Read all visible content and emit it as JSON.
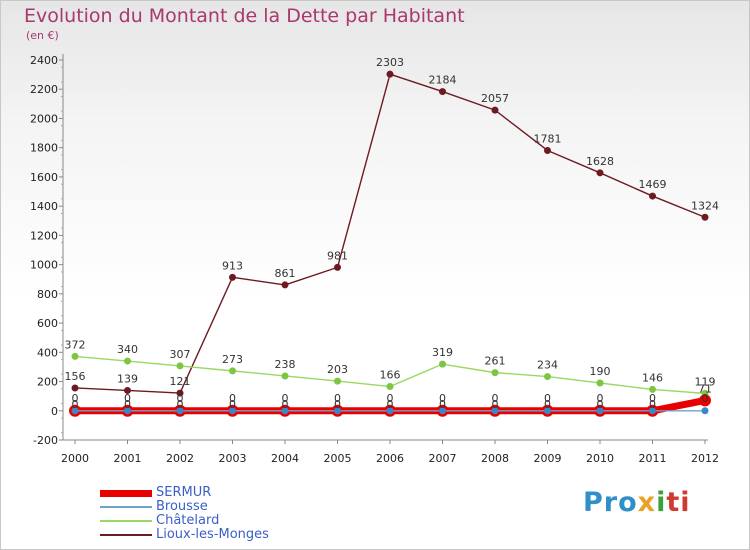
{
  "title": "Evolution du Montant de la Dette par Habitant",
  "subtitle": "(en €)",
  "logo": {
    "part1": "Pro",
    "part2": "x",
    "part3": "i",
    "part4": "ti"
  },
  "chart_data": {
    "type": "line",
    "title": "Evolution du Montant de la Dette par Habitant",
    "subtitle": "(en €)",
    "categories": [
      "2000",
      "2001",
      "2002",
      "2003",
      "2004",
      "2005",
      "2006",
      "2007",
      "2008",
      "2009",
      "2010",
      "2011",
      "2012"
    ],
    "ylim": [
      -200,
      2400
    ],
    "yticks": [
      -200,
      0,
      200,
      400,
      600,
      800,
      1000,
      1200,
      1400,
      1600,
      1800,
      2000,
      2200,
      2400
    ],
    "grid": false,
    "legend_position": "bottom-left",
    "series": [
      {
        "name": "SERMUR",
        "color": "#e80000",
        "values": [
          0,
          0,
          0,
          0,
          0,
          0,
          0,
          0,
          0,
          0,
          0,
          0,
          71
        ]
      },
      {
        "name": "Brousse",
        "color": "#6fa3c8",
        "values": [
          0,
          0,
          0,
          0,
          0,
          0,
          0,
          0,
          0,
          0,
          0,
          0,
          0
        ]
      },
      {
        "name": "Châtelard",
        "color": "#99d962",
        "values": [
          372,
          340,
          307,
          273,
          238,
          203,
          166,
          319,
          261,
          234,
          190,
          146,
          119
        ]
      },
      {
        "name": "Lioux-les-Monges",
        "color": "#6e1a22",
        "values": [
          156,
          139,
          121,
          913,
          861,
          981,
          2303,
          2184,
          2057,
          1781,
          1628,
          1469,
          1324
        ]
      }
    ]
  }
}
